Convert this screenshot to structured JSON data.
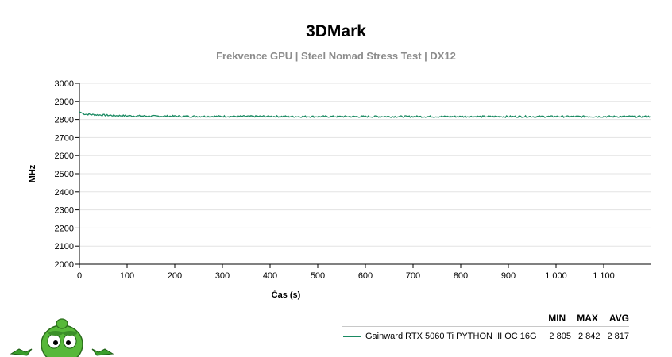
{
  "title": "3DMark",
  "subtitle": "Frekvence GPU | Steel Nomad Stress Test | DX12",
  "legend": {
    "headers": [
      "MIN",
      "MAX",
      "AVG"
    ],
    "rows": [
      {
        "name": "Gainward RTX 5060 Ti PYTHON III OC 16G",
        "min": "2 805",
        "max": "2 842",
        "avg": "2 817",
        "color": "#1a8a62"
      }
    ]
  },
  "chart_data": {
    "type": "line",
    "title": "3DMark",
    "subtitle": "Frekvence GPU | Steel Nomad Stress Test | DX12",
    "xlabel": "Čas (s)",
    "ylabel": "MHz",
    "xlim": [
      0,
      1200
    ],
    "ylim": [
      2000,
      3000
    ],
    "xticks": [
      0,
      100,
      200,
      300,
      400,
      500,
      600,
      700,
      800,
      900,
      1000,
      1100
    ],
    "xtick_labels": [
      "0",
      "100",
      "200",
      "300",
      "400",
      "500",
      "600",
      "700",
      "800",
      "900",
      "1 000",
      "1 100"
    ],
    "yticks": [
      2000,
      2100,
      2200,
      2300,
      2400,
      2500,
      2600,
      2700,
      2800,
      2900,
      3000
    ],
    "ytick_labels": [
      "2000",
      "2100",
      "2200",
      "2300",
      "2400",
      "2500",
      "2600",
      "2700",
      "2800",
      "2900",
      "3000"
    ],
    "grid": true,
    "legend_position": "bottom-right",
    "series": [
      {
        "name": "Gainward RTX 5060 Ti PYTHON III OC 16G",
        "color": "#1a8a62",
        "x": [
          0,
          5,
          10,
          20,
          30,
          40,
          50,
          60,
          70,
          80,
          90,
          100,
          120,
          140,
          160,
          180,
          200,
          220,
          240,
          260,
          280,
          300,
          350,
          400,
          450,
          500,
          550,
          600,
          650,
          700,
          750,
          800,
          850,
          900,
          950,
          1000,
          1050,
          1100,
          1150,
          1198
        ],
        "y": [
          2842,
          2836,
          2830,
          2828,
          2826,
          2825,
          2824,
          2823,
          2822,
          2821,
          2821,
          2820,
          2819,
          2819,
          2818,
          2818,
          2818,
          2817,
          2817,
          2817,
          2817,
          2817,
          2817,
          2817,
          2816,
          2816,
          2816,
          2816,
          2816,
          2816,
          2816,
          2816,
          2816,
          2816,
          2816,
          2816,
          2816,
          2816,
          2816,
          2816
        ],
        "min": 2805,
        "max": 2842,
        "avg": 2817
      }
    ]
  }
}
